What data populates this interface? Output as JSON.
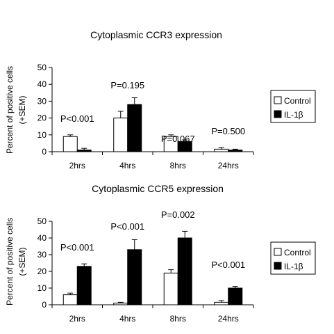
{
  "chart_data": [
    {
      "type": "bar",
      "title": "Cytoplasmic CCR3 expression",
      "ylabel_line1": "Percent of positive cells",
      "ylabel_line2": "(+SEM)",
      "categories": [
        "2hrs",
        "4hrs",
        "8hrs",
        "24hrs"
      ],
      "ylim": [
        0,
        50
      ],
      "yticks": [
        0,
        10,
        20,
        30,
        40,
        50
      ],
      "series": [
        {
          "name": "Control",
          "color": "#ffffff",
          "values": [
            9,
            20,
            9,
            1.5
          ],
          "errors": [
            1,
            4,
            1,
            1
          ]
        },
        {
          "name": "IL-1β",
          "color": "#000000",
          "values": [
            1,
            28,
            6,
            1
          ],
          "errors": [
            1,
            4,
            1,
            0.5
          ]
        }
      ],
      "annotations": [
        "P<0.001",
        "P=0.195",
        "P=0.067",
        "P=0.500"
      ],
      "legend": "right"
    },
    {
      "type": "bar",
      "title": "Cytoplasmic CCR5 expression",
      "ylabel_line1": "Percent of positive cells",
      "ylabel_line2": "(+SEM)",
      "categories": [
        "2hrs",
        "4hrs",
        "8hrs",
        "24hrs"
      ],
      "ylim": [
        0,
        50
      ],
      "yticks": [
        0,
        10,
        20,
        30,
        40,
        50
      ],
      "series": [
        {
          "name": "Control",
          "color": "#ffffff",
          "values": [
            6,
            1,
            19,
            1.5
          ],
          "errors": [
            1,
            0.5,
            2,
            1
          ]
        },
        {
          "name": "IL-1β",
          "color": "#000000",
          "values": [
            23,
            33,
            40,
            10
          ],
          "errors": [
            1.5,
            6,
            4,
            1
          ]
        }
      ],
      "annotations": [
        "P<0.001",
        "P<0.001",
        "P=0.002",
        "P<0.001"
      ],
      "legend": "right"
    }
  ]
}
